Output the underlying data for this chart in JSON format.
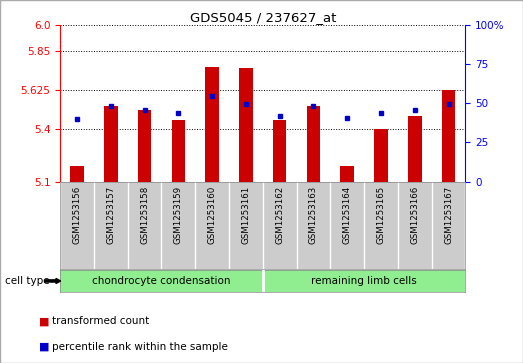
{
  "title": "GDS5045 / 237627_at",
  "samples": [
    "GSM1253156",
    "GSM1253157",
    "GSM1253158",
    "GSM1253159",
    "GSM1253160",
    "GSM1253161",
    "GSM1253162",
    "GSM1253163",
    "GSM1253164",
    "GSM1253165",
    "GSM1253166",
    "GSM1253167"
  ],
  "red_values": [
    5.19,
    5.535,
    5.51,
    5.455,
    5.76,
    5.755,
    5.455,
    5.535,
    5.19,
    5.4,
    5.475,
    5.625
  ],
  "blue_values": [
    5.46,
    5.535,
    5.51,
    5.495,
    5.595,
    5.545,
    5.475,
    5.535,
    5.465,
    5.495,
    5.51,
    5.545
  ],
  "ymin": 5.1,
  "ymax": 6.0,
  "yticks_left": [
    5.1,
    5.4,
    5.625,
    5.85,
    6.0
  ],
  "yticks_right": [
    0,
    25,
    50,
    75,
    100
  ],
  "bar_color": "#cc0000",
  "dot_color": "#0000cc",
  "group1_label": "chondrocyte condensation",
  "group2_label": "remaining limb cells",
  "cell_type_label": "cell type",
  "legend_red": "transformed count",
  "legend_blue": "percentile rank within the sample",
  "xlabels_bg": "#cccccc",
  "group_bg_color": "#90ee90",
  "plot_bg": "#ffffff",
  "fig_bg": "#ffffff",
  "border_color": "#aaaaaa"
}
